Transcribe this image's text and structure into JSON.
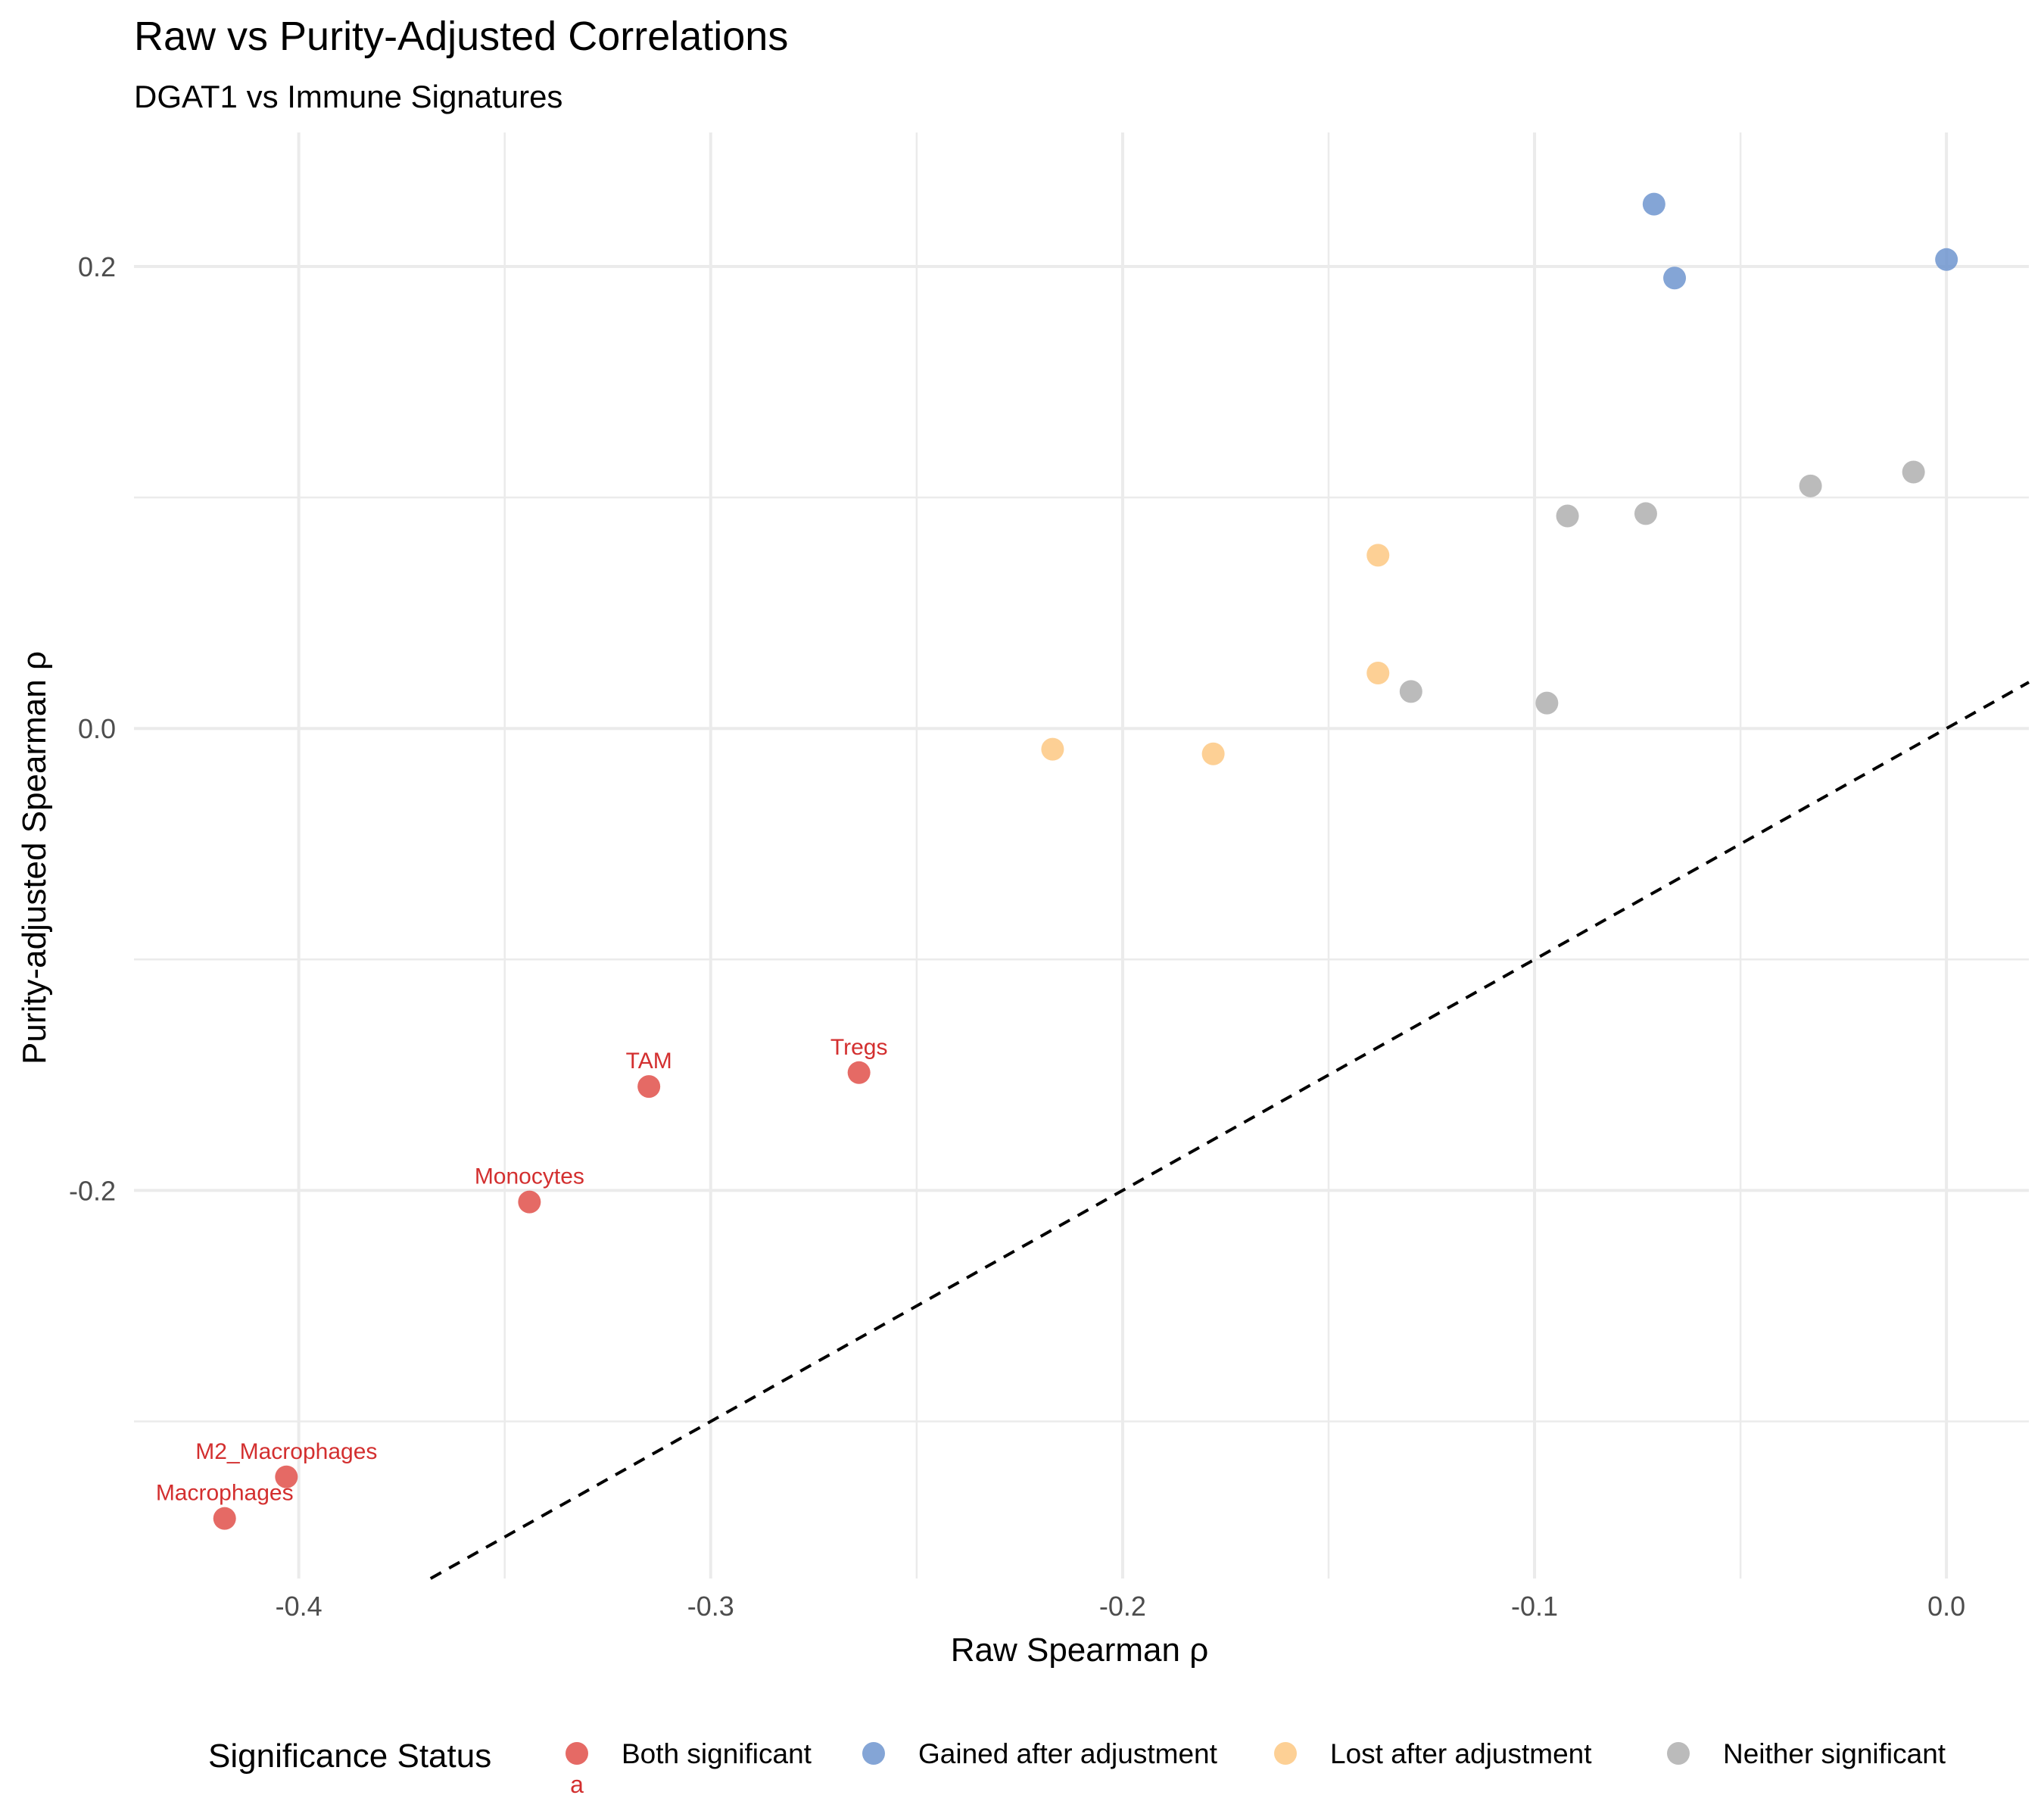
{
  "chart_data": {
    "type": "scatter",
    "title": "Raw vs Purity-Adjusted Correlations",
    "subtitle": "DGAT1 vs Immune Signatures",
    "xlabel": "Raw Spearman ρ",
    "ylabel": "Purity-adjusted Spearman ρ",
    "xlim": [
      -0.44,
      0.02
    ],
    "ylim": [
      -0.368,
      0.258
    ],
    "x_ticks": [
      -0.4,
      -0.3,
      -0.2,
      -0.1,
      0.0
    ],
    "x_tick_labels": [
      "-0.4",
      "-0.3",
      "-0.2",
      "-0.1",
      "0.0"
    ],
    "y_ticks": [
      -0.2,
      0.0,
      0.2
    ],
    "y_tick_labels": [
      "-0.2",
      "0.0",
      "0.2"
    ],
    "grid": true,
    "reference_line": {
      "style": "dashed",
      "slope": 1,
      "intercept": 0
    },
    "legend": {
      "title": "Significance Status",
      "position": "bottom",
      "key_glyph_text": "a"
    },
    "series": [
      {
        "name": "Both significant",
        "color": "#E0504A",
        "points": [
          {
            "x": -0.418,
            "y": -0.342,
            "label": "Macrophages"
          },
          {
            "x": -0.403,
            "y": -0.324,
            "label": "M2_Macrophages"
          },
          {
            "x": -0.344,
            "y": -0.205,
            "label": "Monocytes"
          },
          {
            "x": -0.315,
            "y": -0.155,
            "label": "TAM"
          },
          {
            "x": -0.264,
            "y": -0.149,
            "label": "Tregs"
          }
        ]
      },
      {
        "name": "Gained after adjustment",
        "color": "#6E95CF",
        "points": [
          {
            "x": -0.071,
            "y": 0.227
          },
          {
            "x": -0.066,
            "y": 0.195
          },
          {
            "x": 0.0,
            "y": 0.203
          }
        ]
      },
      {
        "name": "Lost after adjustment",
        "color": "#FDC882",
        "points": [
          {
            "x": -0.138,
            "y": 0.075
          },
          {
            "x": -0.138,
            "y": 0.024
          },
          {
            "x": -0.217,
            "y": -0.009
          },
          {
            "x": -0.178,
            "y": -0.011
          }
        ]
      },
      {
        "name": "Neither significant",
        "color": "#AFAFAF",
        "points": [
          {
            "x": -0.092,
            "y": 0.092
          },
          {
            "x": -0.073,
            "y": 0.093
          },
          {
            "x": -0.033,
            "y": 0.105
          },
          {
            "x": -0.008,
            "y": 0.111
          },
          {
            "x": -0.13,
            "y": 0.016
          },
          {
            "x": -0.097,
            "y": 0.011
          }
        ]
      }
    ]
  }
}
